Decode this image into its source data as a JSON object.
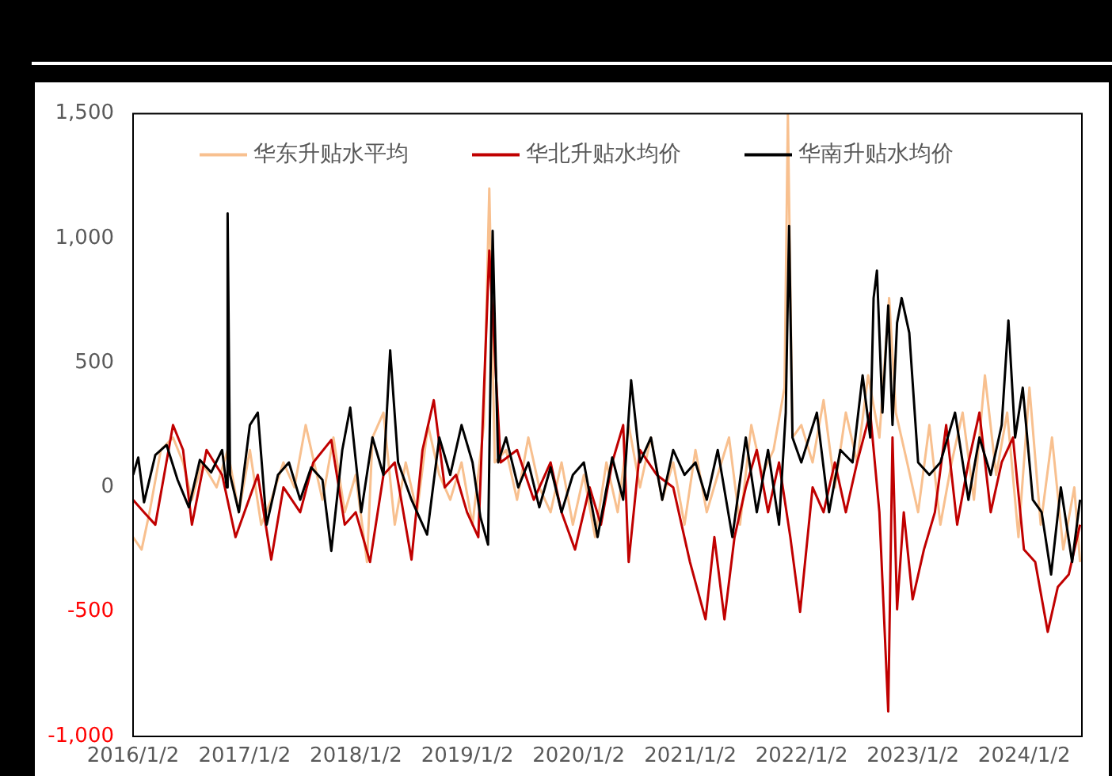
{
  "chart_data": {
    "type": "line",
    "xlim": [
      "2016-01-02",
      "2024-07-09"
    ],
    "xticks": [
      {
        "value": "2016-01-02",
        "label": "2016/1/2"
      },
      {
        "value": "2017-01-02",
        "label": "2017/1/2"
      },
      {
        "value": "2018-01-02",
        "label": "2018/1/2"
      },
      {
        "value": "2019-01-02",
        "label": "2019/1/2"
      },
      {
        "value": "2020-01-02",
        "label": "2020/1/2"
      },
      {
        "value": "2021-01-02",
        "label": "2021/1/2"
      },
      {
        "value": "2022-01-02",
        "label": "2022/1/2"
      },
      {
        "value": "2023-01-02",
        "label": "2023/1/2"
      },
      {
        "value": "2024-01-02",
        "label": "2024/1/2"
      }
    ],
    "ylim": [
      -1000,
      1500
    ],
    "yticks": [
      {
        "value": -1000,
        "label": "-1,000"
      },
      {
        "value": -500,
        "label": "-500"
      },
      {
        "value": 0,
        "label": "0"
      },
      {
        "value": 500,
        "label": "500"
      },
      {
        "value": 1000,
        "label": "1,000"
      },
      {
        "value": 1500,
        "label": "1,500"
      }
    ],
    "grid": false,
    "legend": "top",
    "marker": "none",
    "series": [
      {
        "name": "华东升贴水平均",
        "color": "#f8c08f",
        "x": [
          "2016-01-02",
          "2016-01-30",
          "2016-02-25",
          "2016-04-02",
          "2016-05-12",
          "2016-06-14",
          "2016-07-13",
          "2016-08-15",
          "2016-10-02",
          "2016-11-07",
          "2016-12-14",
          "2017-01-19",
          "2017-02-25",
          "2017-03-30",
          "2017-05-09",
          "2017-06-14",
          "2017-07-21",
          "2017-09-14",
          "2017-10-20",
          "2017-11-26",
          "2018-01-01",
          "2018-02-07",
          "2018-02-25",
          "2018-04-02",
          "2018-05-09",
          "2018-06-14",
          "2018-07-21",
          "2018-08-26",
          "2018-10-02",
          "2018-11-07",
          "2018-12-14",
          "2019-01-19",
          "2019-02-25",
          "2019-03-15",
          "2019-04-02",
          "2019-05-09",
          "2019-06-14",
          "2019-07-21",
          "2019-08-26",
          "2019-10-02",
          "2019-11-07",
          "2019-12-14",
          "2020-01-19",
          "2020-02-25",
          "2020-04-02",
          "2020-05-09",
          "2020-06-14",
          "2020-07-21",
          "2020-08-26",
          "2020-10-02",
          "2020-11-07",
          "2020-12-14",
          "2021-01-19",
          "2021-02-25",
          "2021-04-02",
          "2021-05-09",
          "2021-06-14",
          "2021-07-21",
          "2021-08-26",
          "2021-10-02",
          "2021-11-07",
          "2021-11-18",
          "2021-12-03",
          "2022-01-01",
          "2022-02-07",
          "2022-03-15",
          "2022-04-21",
          "2022-05-27",
          "2022-07-03",
          "2022-08-08",
          "2022-09-14",
          "2022-10-16",
          "2022-11-07",
          "2022-12-14",
          "2023-01-19",
          "2023-02-25",
          "2023-04-02",
          "2023-05-09",
          "2023-06-14",
          "2023-07-21",
          "2023-08-26",
          "2023-10-02",
          "2023-11-07",
          "2023-12-14",
          "2024-01-19",
          "2024-02-25",
          "2024-04-02",
          "2024-05-09",
          "2024-06-14",
          "2024-07-03"
        ],
        "values": [
          -200,
          -250,
          -100,
          150,
          200,
          100,
          -50,
          100,
          0,
          150,
          -100,
          150,
          -150,
          -50,
          100,
          0,
          250,
          -50,
          200,
          -100,
          50,
          -300,
          200,
          300,
          -150,
          100,
          -100,
          250,
          50,
          -50,
          100,
          -150,
          250,
          1200,
          100,
          150,
          -50,
          200,
          0,
          -100,
          100,
          -150,
          50,
          -200,
          100,
          -100,
          250,
          0,
          200,
          -50,
          100,
          -150,
          150,
          -100,
          50,
          200,
          -150,
          250,
          50,
          150,
          400,
          1500,
          200,
          250,
          100,
          350,
          0,
          300,
          100,
          450,
          200,
          760,
          300,
          100,
          -100,
          250,
          -150,
          100,
          300,
          -50,
          450,
          50,
          300,
          -200,
          400,
          -150,
          200,
          -250,
          0,
          -300
        ]
      },
      {
        "name": "华北升贴水均价",
        "color": "#c00000",
        "x": [
          "2016-01-02",
          "2016-02-07",
          "2016-03-15",
          "2016-04-13",
          "2016-05-12",
          "2016-06-14",
          "2016-07-13",
          "2016-08-30",
          "2016-10-20",
          "2016-12-03",
          "2017-01-01",
          "2017-02-14",
          "2017-03-30",
          "2017-05-09",
          "2017-07-03",
          "2017-08-15",
          "2017-10-13",
          "2017-11-26",
          "2018-01-01",
          "2018-02-17",
          "2018-04-02",
          "2018-05-09",
          "2018-07-03",
          "2018-08-08",
          "2018-09-14",
          "2018-10-20",
          "2018-11-26",
          "2019-01-01",
          "2019-02-07",
          "2019-03-15",
          "2019-04-21",
          "2019-06-14",
          "2019-08-08",
          "2019-10-02",
          "2019-11-07",
          "2019-12-21",
          "2020-02-07",
          "2020-03-15",
          "2020-04-21",
          "2020-05-27",
          "2020-06-14",
          "2020-07-21",
          "2020-09-14",
          "2020-11-07",
          "2021-01-01",
          "2021-02-21",
          "2021-03-22",
          "2021-04-24",
          "2021-05-27",
          "2021-07-03",
          "2021-08-08",
          "2021-09-14",
          "2021-10-20",
          "2021-11-26",
          "2021-12-28",
          "2022-02-07",
          "2022-03-15",
          "2022-04-21",
          "2022-05-27",
          "2022-07-03",
          "2022-08-15",
          "2022-09-14",
          "2022-10-13",
          "2022-10-27",
          "2022-11-11",
          "2022-12-03",
          "2023-01-01",
          "2023-02-07",
          "2023-03-15",
          "2023-04-21",
          "2023-05-27",
          "2023-07-03",
          "2023-08-08",
          "2023-09-14",
          "2023-10-20",
          "2023-11-26",
          "2024-01-01",
          "2024-02-07",
          "2024-03-19",
          "2024-04-21",
          "2024-05-27",
          "2024-07-03"
        ],
        "values": [
          -50,
          -100,
          -150,
          50,
          250,
          150,
          -150,
          150,
          50,
          -200,
          -100,
          50,
          -290,
          0,
          -100,
          100,
          190,
          -150,
          -100,
          -300,
          50,
          100,
          -290,
          150,
          350,
          0,
          50,
          -100,
          -200,
          950,
          100,
          150,
          -50,
          100,
          -100,
          -250,
          0,
          -150,
          100,
          250,
          -300,
          150,
          50,
          0,
          -300,
          -530,
          -200,
          -530,
          -200,
          0,
          150,
          -100,
          100,
          -200,
          -500,
          0,
          -100,
          100,
          -100,
          100,
          300,
          -100,
          -900,
          200,
          -490,
          -100,
          -450,
          -250,
          -100,
          250,
          -150,
          100,
          300,
          -100,
          100,
          200,
          -250,
          -300,
          -580,
          -400,
          -350,
          -150
        ]
      },
      {
        "name": "华南升贴水均价",
        "color": "#000000",
        "x": [
          "2016-01-02",
          "2016-01-19",
          "2016-02-07",
          "2016-03-15",
          "2016-04-21",
          "2016-05-27",
          "2016-07-03",
          "2016-08-08",
          "2016-09-14",
          "2016-10-20",
          "2016-11-04",
          "2016-11-07",
          "2016-11-15",
          "2016-12-14",
          "2017-01-19",
          "2017-02-14",
          "2017-03-15",
          "2017-04-21",
          "2017-05-27",
          "2017-07-03",
          "2017-08-08",
          "2017-09-14",
          "2017-10-13",
          "2017-11-18",
          "2017-12-14",
          "2018-01-19",
          "2018-02-25",
          "2018-04-02",
          "2018-04-24",
          "2018-05-20",
          "2018-07-03",
          "2018-08-23",
          "2018-10-02",
          "2018-11-07",
          "2018-12-14",
          "2019-01-19",
          "2019-02-14",
          "2019-03-11",
          "2019-03-26",
          "2019-04-13",
          "2019-05-09",
          "2019-06-18",
          "2019-07-21",
          "2019-08-26",
          "2019-10-02",
          "2019-11-07",
          "2019-12-14",
          "2020-01-19",
          "2020-03-04",
          "2020-04-21",
          "2020-05-27",
          "2020-06-22",
          "2020-07-21",
          "2020-08-26",
          "2020-10-02",
          "2020-11-07",
          "2020-12-14",
          "2021-01-19",
          "2021-02-25",
          "2021-04-02",
          "2021-05-20",
          "2021-07-03",
          "2021-08-08",
          "2021-09-14",
          "2021-10-20",
          "2021-11-11",
          "2021-11-22",
          "2021-12-03",
          "2022-01-01",
          "2022-02-21",
          "2022-04-02",
          "2022-05-09",
          "2022-06-18",
          "2022-07-21",
          "2022-08-15",
          "2022-08-26",
          "2022-09-06",
          "2022-09-24",
          "2022-10-13",
          "2022-10-27",
          "2022-11-11",
          "2022-11-26",
          "2022-12-21",
          "2023-01-19",
          "2023-02-25",
          "2023-04-02",
          "2023-05-20",
          "2023-07-03",
          "2023-08-08",
          "2023-09-14",
          "2023-10-20",
          "2023-11-11",
          "2023-12-03",
          "2023-12-28",
          "2024-01-30",
          "2024-02-28",
          "2024-03-30",
          "2024-05-01",
          "2024-06-07",
          "2024-07-03"
        ],
        "values": [
          50,
          120,
          -60,
          130,
          170,
          30,
          -80,
          110,
          60,
          150,
          0,
          1100,
          50,
          -100,
          250,
          300,
          -150,
          50,
          100,
          -50,
          80,
          30,
          -255,
          150,
          320,
          -100,
          200,
          50,
          550,
          100,
          -50,
          -190,
          200,
          50,
          250,
          100,
          -120,
          -230,
          1030,
          100,
          200,
          0,
          100,
          -80,
          80,
          -100,
          50,
          100,
          -200,
          120,
          -50,
          430,
          100,
          200,
          -50,
          150,
          50,
          100,
          -50,
          150,
          -200,
          200,
          -100,
          150,
          -150,
          300,
          1050,
          200,
          100,
          300,
          -100,
          150,
          100,
          450,
          200,
          760,
          870,
          300,
          730,
          250,
          660,
          760,
          620,
          100,
          50,
          100,
          300,
          -50,
          200,
          50,
          250,
          670,
          200,
          400,
          -50,
          -100,
          -350,
          0,
          -300,
          -50
        ]
      }
    ]
  }
}
